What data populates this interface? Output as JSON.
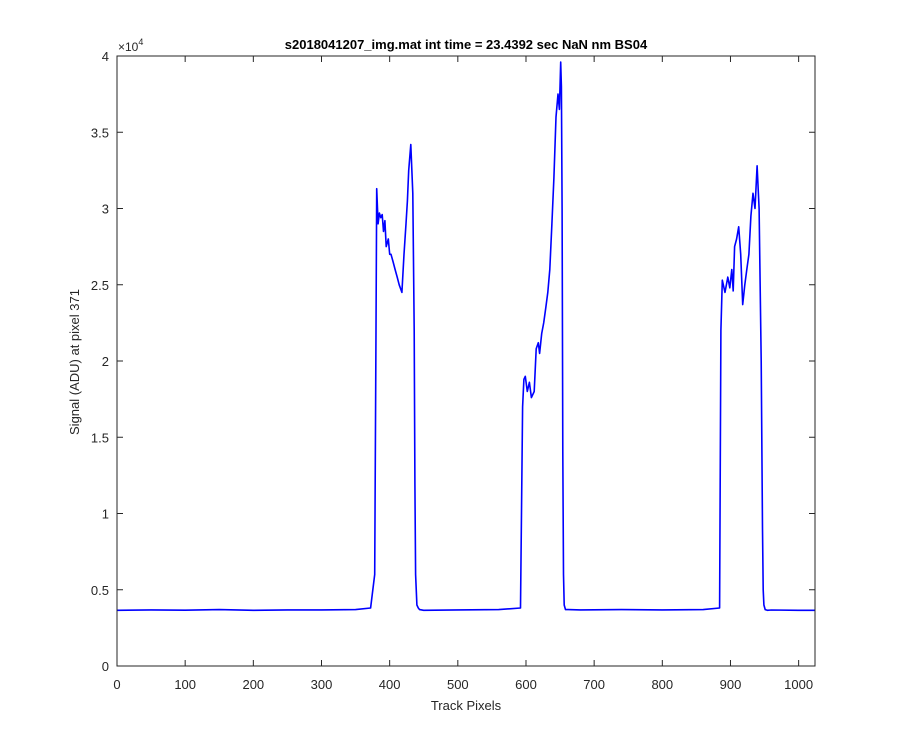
{
  "chart_data": {
    "type": "line",
    "title": "s2018041207_img.mat int time = 23.4392 sec  NaN nm BS04",
    "xlabel": "Track Pixels",
    "ylabel": "Signal (ADU) at pixel 371",
    "xlim": [
      0,
      1024
    ],
    "ylim": [
      0,
      40000
    ],
    "x_ticks": [
      0,
      100,
      200,
      300,
      400,
      500,
      600,
      700,
      800,
      900,
      1000
    ],
    "y_ticks": [
      0,
      5000,
      10000,
      15000,
      20000,
      25000,
      30000,
      35000,
      40000
    ],
    "y_tick_labels": [
      "0",
      "0.5",
      "1",
      "1.5",
      "2",
      "2.5",
      "3",
      "3.5",
      "4"
    ],
    "y_exponent_label": "×10",
    "y_exponent_power": "4",
    "grid": false,
    "line_color": "#0000ff",
    "series": [
      {
        "x": [
          0,
          50,
          100,
          150,
          200,
          250,
          300,
          350,
          372,
          378,
          380,
          381,
          383,
          385,
          387,
          389,
          391,
          393,
          395,
          398,
          400,
          402,
          405,
          408,
          411,
          414,
          418,
          421,
          424,
          426,
          428,
          431,
          434,
          436,
          437,
          438,
          440,
          442,
          444,
          450,
          500,
          560,
          592,
          595,
          597,
          599,
          602,
          605,
          608,
          612,
          615,
          618,
          620,
          623,
          626,
          629,
          632,
          635,
          638,
          641,
          644,
          647,
          649,
          651,
          652,
          653,
          654,
          655,
          656,
          658,
          662,
          680,
          740,
          800,
          860,
          884,
          886,
          888,
          892,
          896,
          899,
          902,
          904,
          906,
          909,
          912,
          915,
          918,
          921,
          924,
          927,
          930,
          933,
          936,
          939,
          942,
          945,
          947,
          948,
          949,
          951,
          954,
          960,
          1000,
          1024
        ],
        "y": [
          3650,
          3680,
          3660,
          3700,
          3650,
          3680,
          3680,
          3700,
          3800,
          6000,
          22000,
          31300,
          29000,
          29700,
          29400,
          29600,
          28500,
          29200,
          27500,
          28000,
          27000,
          27000,
          26500,
          26000,
          25500,
          25000,
          24500,
          27000,
          29000,
          30500,
          32500,
          34200,
          31000,
          22000,
          12000,
          6000,
          4000,
          3800,
          3700,
          3650,
          3680,
          3700,
          3800,
          17000,
          18800,
          19000,
          18000,
          18600,
          17600,
          18000,
          20800,
          21200,
          20500,
          21800,
          22500,
          23500,
          24500,
          26000,
          29000,
          32000,
          36000,
          37500,
          36500,
          39600,
          38000,
          30000,
          14000,
          6000,
          4000,
          3700,
          3700,
          3680,
          3700,
          3680,
          3700,
          3800,
          22000,
          25300,
          24500,
          25500,
          24800,
          26000,
          24600,
          27500,
          28000,
          28800,
          27000,
          23700,
          25000,
          26000,
          27000,
          29500,
          31000,
          30000,
          32800,
          30000,
          20000,
          9000,
          5000,
          4000,
          3700,
          3650,
          3670,
          3650,
          3650
        ]
      }
    ]
  }
}
